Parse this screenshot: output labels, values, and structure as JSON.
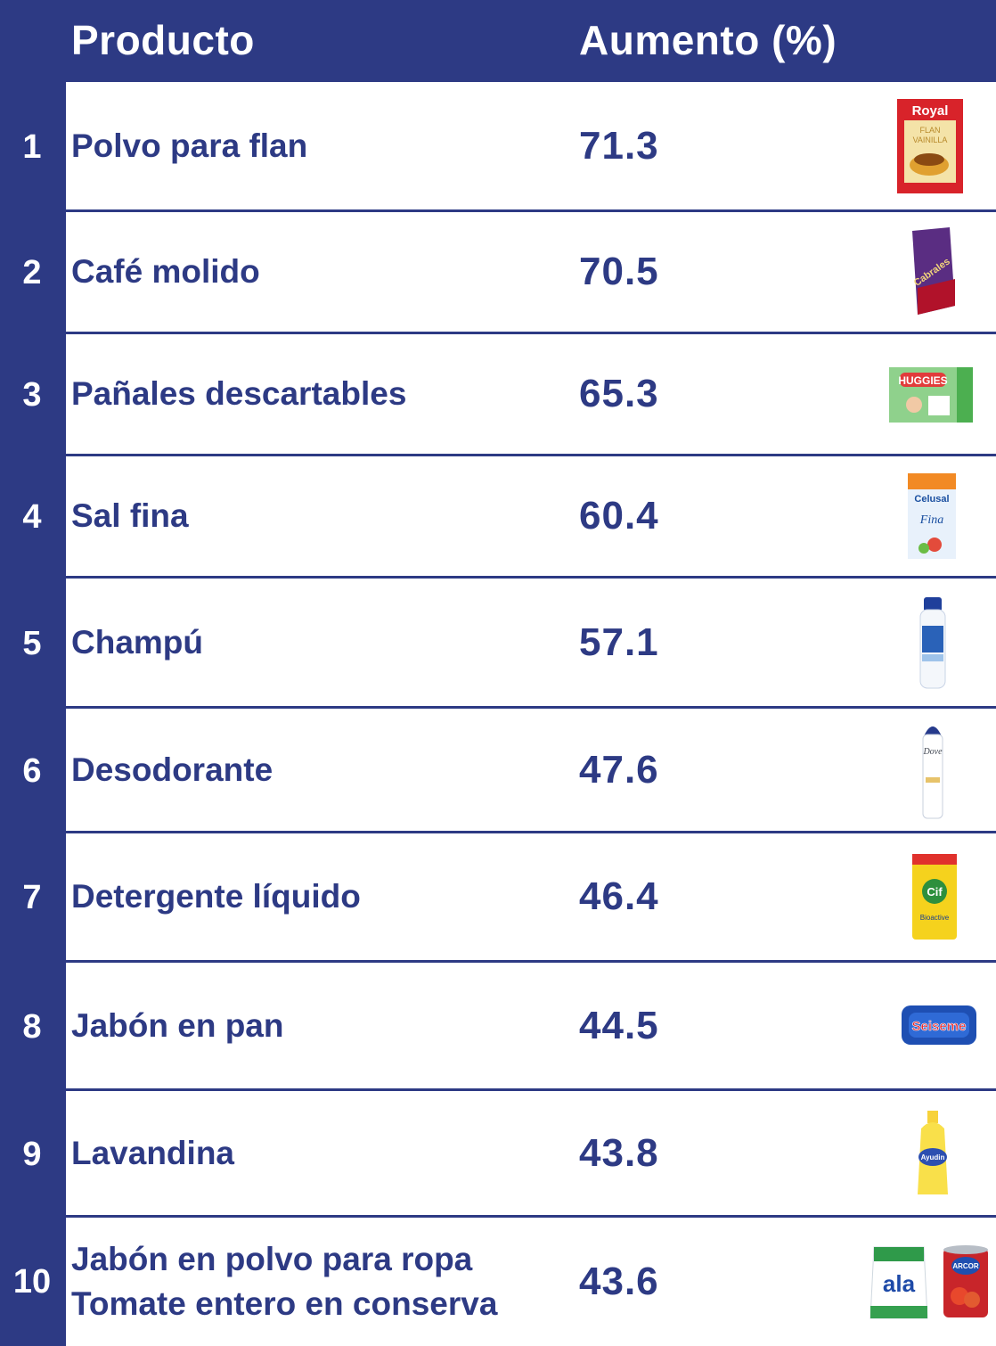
{
  "chart_data": {
    "type": "table",
    "columns": [
      "Producto",
      "Aumento (%)"
    ],
    "rows": [
      {
        "rank": "1",
        "product": [
          "Polvo para flan"
        ],
        "value": "71.3",
        "image": "flan-powder-packet-icon"
      },
      {
        "rank": "2",
        "product": [
          "Café molido"
        ],
        "value": "70.5",
        "image": "ground-coffee-bag-icon"
      },
      {
        "rank": "3",
        "product": [
          "Pañales descartables"
        ],
        "value": "65.3",
        "image": "diaper-pack-icon"
      },
      {
        "rank": "4",
        "product": [
          "Sal fina"
        ],
        "value": "60.4",
        "image": "salt-box-icon"
      },
      {
        "rank": "5",
        "product": [
          "Champú"
        ],
        "value": "57.1",
        "image": "shampoo-bottle-icon"
      },
      {
        "rank": "6",
        "product": [
          "Desodorante"
        ],
        "value": "47.6",
        "image": "deodorant-spray-icon"
      },
      {
        "rank": "7",
        "product": [
          "Detergente líquido"
        ],
        "value": "46.4",
        "image": "detergent-refill-icon"
      },
      {
        "rank": "8",
        "product": [
          "Jabón en pan"
        ],
        "value": "44.5",
        "image": "soap-bar-icon"
      },
      {
        "rank": "9",
        "product": [
          "Lavandina"
        ],
        "value": "43.8",
        "image": "bleach-bottle-icon"
      },
      {
        "rank": "10",
        "product": [
          "Jabón en polvo para ropa",
          "Tomate entero en conserva"
        ],
        "value": "43.6",
        "image": [
          "laundry-powder-bag-icon",
          "tomato-can-icon"
        ]
      }
    ]
  },
  "labels": {
    "royal": "Royal",
    "flan": "FLAN",
    "vainilla": "VAINILLA",
    "cabrales": "Cabrales",
    "huggies": "HUGGIES",
    "celusal": "Celusal",
    "fina": "Fina",
    "dove": "Dove",
    "cif": "Cif",
    "bioactive": "Bioactive",
    "seiseme": "Seiseme",
    "ayudin": "Ayudin",
    "ala": "ala",
    "arcor": "ARCOR"
  },
  "colors": {
    "background": "#2d3a84",
    "text": "#2d3a84",
    "header_text": "#ffffff"
  }
}
